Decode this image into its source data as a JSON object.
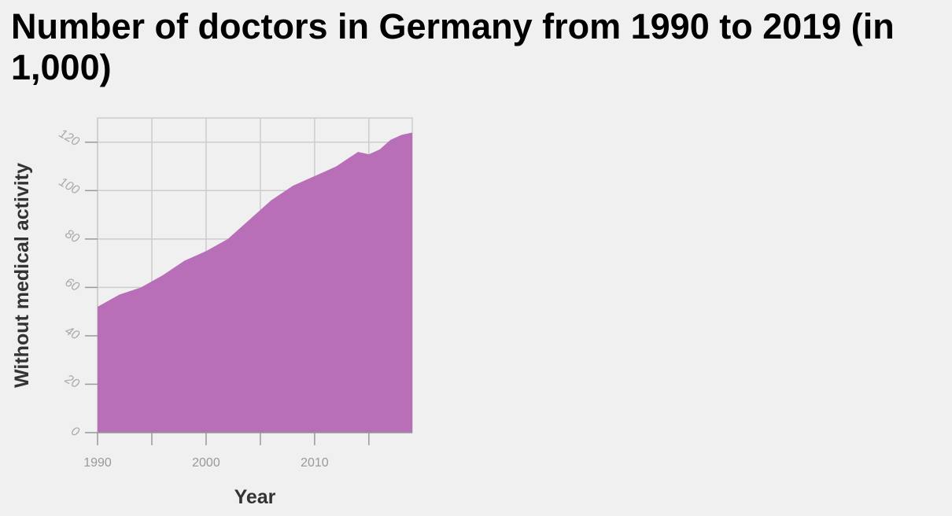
{
  "chart_data": {
    "type": "area",
    "title": "Number of doctors in Germany from 1990 to 2019 (in 1,000)",
    "xlabel": "Year",
    "ylabel": "Without medical activity",
    "xlim": [
      1990,
      2019
    ],
    "ylim": [
      0,
      130
    ],
    "x_ticks": [
      1990,
      1995,
      2000,
      2005,
      2010,
      2015
    ],
    "x_tick_labels": [
      "1990",
      "",
      "2000",
      "",
      "2010",
      ""
    ],
    "y_ticks": [
      0,
      20,
      40,
      60,
      80,
      100,
      120
    ],
    "y_tick_labels": [
      "0",
      "20",
      "40",
      "60",
      "80",
      "100",
      "120"
    ],
    "grid": true,
    "color": "#b86fb8",
    "series": [
      {
        "x": [
          1990,
          1992,
          1994,
          1996,
          1998,
          2000,
          2002,
          2004,
          2006,
          2008,
          2010,
          2011,
          2012,
          2013,
          2014,
          2015,
          2016,
          2017,
          2018,
          2019
        ],
        "y": [
          52,
          57,
          60,
          65,
          71,
          75,
          80,
          88,
          96,
          102,
          106,
          108,
          110,
          113,
          116,
          115,
          117,
          121,
          123,
          124
        ]
      }
    ]
  }
}
